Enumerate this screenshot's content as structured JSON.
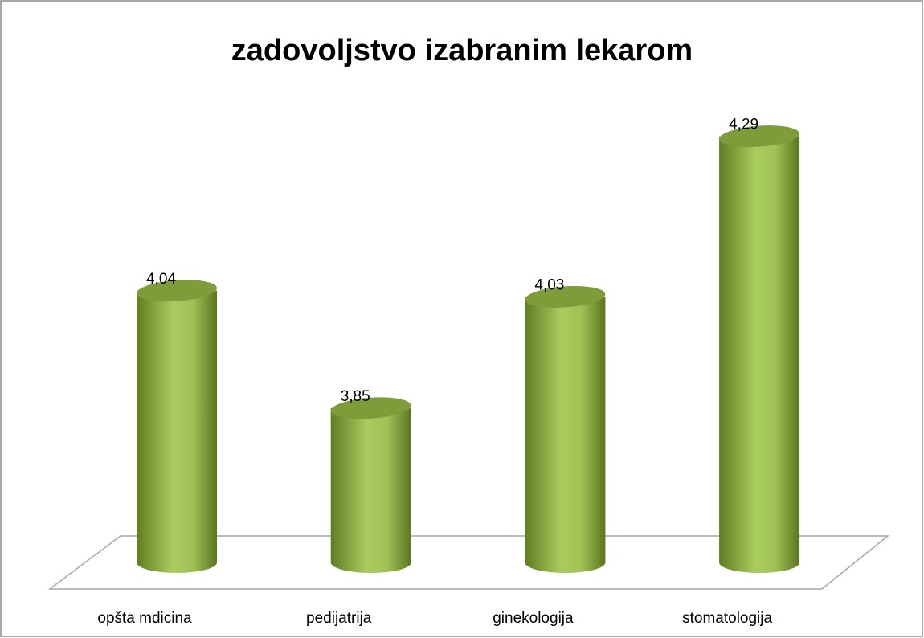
{
  "chart_data": {
    "type": "cylinder",
    "title": "zadovoljstvo izabranim lekarom",
    "categories": [
      "opšta mdicina",
      "pedijatrija",
      "ginekologija",
      "stomatologija"
    ],
    "values": [
      4.04,
      3.85,
      4.03,
      4.29
    ],
    "value_labels": [
      "4,04",
      "3,85",
      "4,03",
      "4,29"
    ],
    "color": "#9bbb59",
    "ylim": [
      3.6,
      4.4
    ]
  }
}
